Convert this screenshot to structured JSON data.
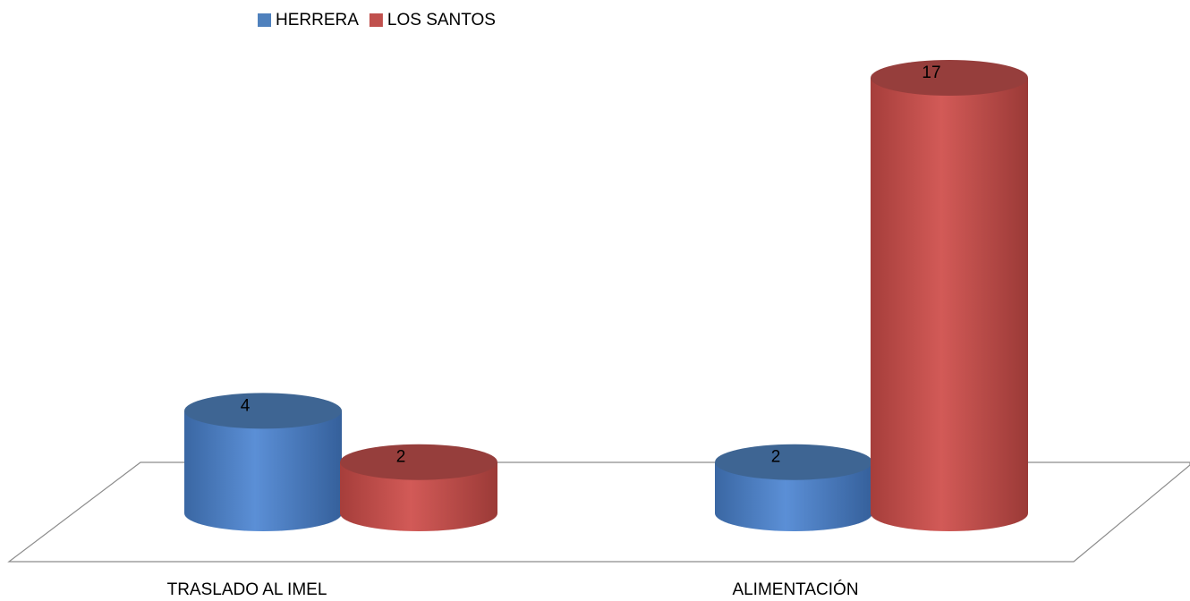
{
  "chart_data": {
    "type": "bar3d",
    "categories": [
      "TRASLADO AL IMEL",
      "ALIMENTACIÓN"
    ],
    "series": [
      {
        "name": "HERRERA",
        "color": "#4f81bd",
        "values": [
          4,
          2
        ]
      },
      {
        "name": "LOS SANTOS",
        "color": "#c0504d",
        "values": [
          2,
          17
        ]
      }
    ],
    "legend": "top"
  }
}
